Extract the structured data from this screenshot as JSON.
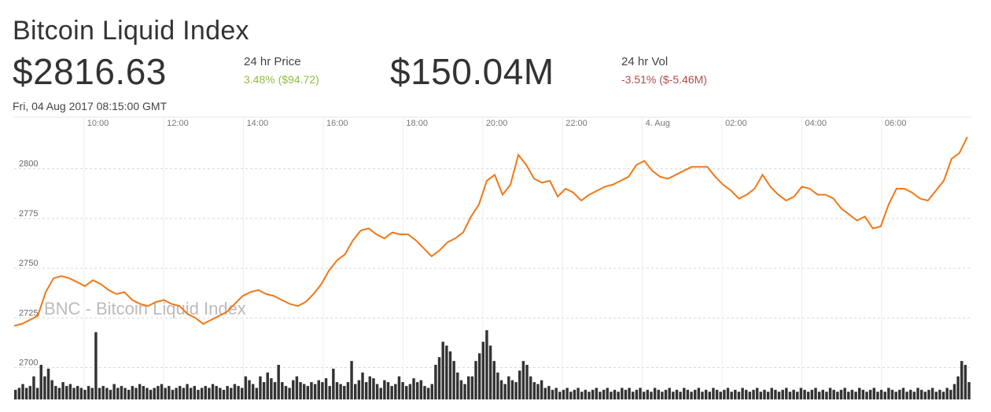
{
  "header": {
    "title": "Bitcoin Liquid Index",
    "price": "$2816.63",
    "price_label": "24 hr Price",
    "price_change": "3.48% ($94.72)",
    "volume": "$150.04M",
    "volume_label": "24 hr Vol",
    "volume_change": "-3.51% ($-5.46M)",
    "timestamp": "Fri, 04 Aug 2017 08:15:00 GMT"
  },
  "colors": {
    "line": "#f07818",
    "up": "#8fbf3f",
    "down": "#b44a4a",
    "volume_bar": "#333333"
  },
  "chart_data": {
    "type": "line",
    "title": "BNC - Bitcoin Liquid Index",
    "x_ticks": [
      "10:00",
      "12:00",
      "14:00",
      "16:00",
      "18:00",
      "20:00",
      "22:00",
      "4. Aug",
      "02:00",
      "04:00",
      "06:00"
    ],
    "x_tick_hours": [
      10,
      12,
      14,
      16,
      18,
      20,
      22,
      24,
      26,
      28,
      30
    ],
    "y_ticks": [
      "2800",
      "2775",
      "2750",
      "2725",
      "2700"
    ],
    "y_tick_values": [
      2800,
      2775,
      2750,
      2725,
      2700
    ],
    "xlim_hours": [
      8.25,
      32.25
    ],
    "ylim": [
      2684,
      2824
    ],
    "grid": true,
    "series": [
      {
        "values": [
          2721,
          2722,
          2724,
          2726,
          2738,
          2745,
          2746,
          2745,
          2743,
          2741,
          2744,
          2742,
          2739,
          2737,
          2738,
          2734,
          2732,
          2731,
          2733,
          2734,
          2732,
          2731,
          2727,
          2725,
          2722,
          2724,
          2726,
          2728,
          2732,
          2736,
          2738,
          2739,
          2737,
          2736,
          2734,
          2732,
          2731,
          2733,
          2737,
          2742,
          2749,
          2754,
          2757,
          2764,
          2769,
          2770,
          2767,
          2765,
          2768,
          2767,
          2767,
          2764,
          2760,
          2756,
          2759,
          2763,
          2765,
          2768,
          2776,
          2782,
          2794,
          2797,
          2787,
          2792,
          2807,
          2802,
          2795,
          2793,
          2794,
          2786,
          2790,
          2788,
          2784,
          2787,
          2789,
          2791,
          2792,
          2794,
          2796,
          2802,
          2804,
          2799,
          2796,
          2795,
          2797,
          2799,
          2801,
          2801,
          2801,
          2796,
          2792,
          2789,
          2785,
          2787,
          2790,
          2797,
          2791,
          2787,
          2784,
          2786,
          2791,
          2790,
          2787,
          2787,
          2785,
          2780,
          2777,
          2774,
          2776,
          2770,
          2771,
          2782,
          2790,
          2790,
          2788,
          2785,
          2784,
          2789,
          2794,
          2805,
          2808,
          2816
        ]
      }
    ],
    "volume": [
      5,
      6,
      8,
      6,
      7,
      12,
      6,
      18,
      12,
      16,
      10,
      7,
      6,
      9,
      7,
      8,
      6,
      7,
      6,
      5,
      7,
      6,
      35,
      6,
      7,
      6,
      5,
      8,
      6,
      7,
      6,
      5,
      7,
      6,
      8,
      7,
      6,
      5,
      6,
      7,
      8,
      6,
      7,
      5,
      6,
      7,
      6,
      8,
      6,
      7,
      5,
      6,
      7,
      6,
      8,
      7,
      6,
      5,
      7,
      6,
      8,
      7,
      6,
      12,
      10,
      8,
      6,
      12,
      9,
      14,
      11,
      9,
      18,
      9,
      7,
      6,
      10,
      12,
      9,
      8,
      7,
      9,
      8,
      10,
      9,
      11,
      7,
      16,
      9,
      8,
      7,
      9,
      20,
      8,
      10,
      14,
      9,
      12,
      11,
      8,
      6,
      10,
      9,
      7,
      8,
      12,
      9,
      7,
      8,
      11,
      9,
      10,
      7,
      6,
      8,
      18,
      22,
      30,
      28,
      25,
      20,
      14,
      10,
      8,
      12,
      12,
      20,
      24,
      30,
      36,
      28,
      20,
      14,
      10,
      8,
      12,
      10,
      9,
      15,
      20,
      18,
      12,
      9,
      8,
      10,
      6,
      7,
      5,
      6,
      4,
      5,
      6,
      4,
      5,
      6,
      4,
      5,
      4,
      5,
      6,
      4,
      5,
      6,
      4,
      5,
      4,
      6,
      5,
      6,
      4,
      5,
      6,
      4,
      5,
      4,
      6,
      5,
      4,
      5,
      6,
      4,
      5,
      4,
      6,
      5,
      4,
      5,
      6,
      4,
      5,
      4,
      6,
      5,
      4,
      5,
      6,
      4,
      5,
      4,
      6,
      5,
      4,
      5,
      6,
      4,
      5,
      4,
      6,
      5,
      4,
      5,
      6,
      4,
      5,
      4,
      6,
      5,
      4,
      5,
      6,
      4,
      5,
      4,
      6,
      5,
      4,
      5,
      6,
      4,
      5,
      4,
      6,
      5,
      4,
      5,
      6,
      4,
      5,
      4,
      6,
      5,
      4,
      5,
      6,
      4,
      5,
      4,
      6,
      5,
      4,
      5,
      6,
      4,
      5,
      4,
      6,
      5,
      8,
      12,
      20,
      18,
      9
    ]
  }
}
